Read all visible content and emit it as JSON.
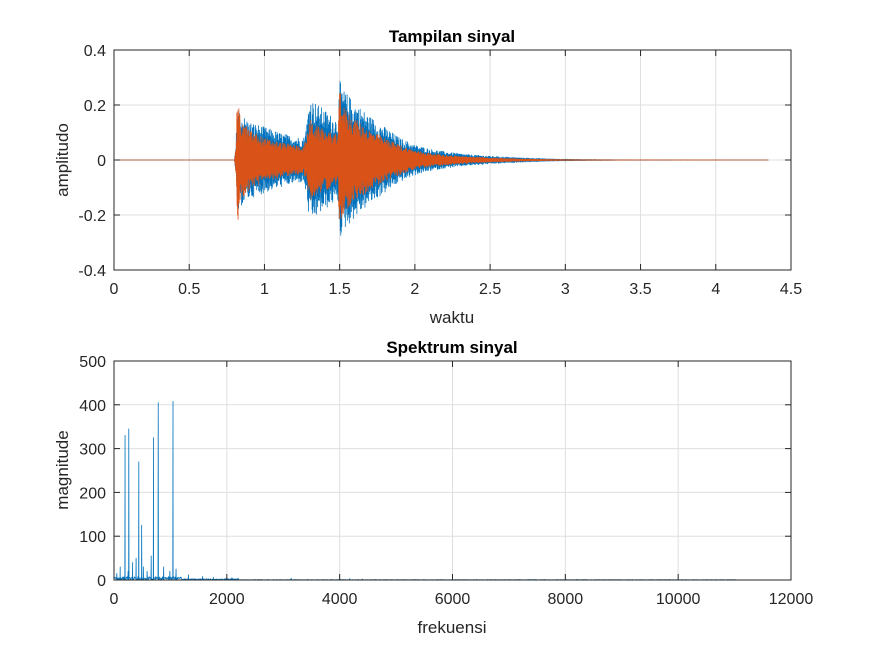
{
  "figure_background": "#ffffff",
  "chart_data": [
    {
      "type": "line",
      "title": "Tampilan sinyal",
      "xlabel": "waktu",
      "ylabel": "amplitudo",
      "xlim": [
        0,
        4.5
      ],
      "ylim": [
        -0.4,
        0.4
      ],
      "xticks": [
        "0",
        "0.5",
        "1",
        "1.5",
        "2",
        "2.5",
        "3",
        "3.5",
        "4",
        "4.5"
      ],
      "yticks": [
        "-0.4",
        "-0.2",
        "0",
        "0.2",
        "0.4"
      ],
      "grid": true,
      "x_end": 4.35,
      "series": [
        {
          "color": "#0072BD",
          "envelope": [
            [
              0,
              0
            ],
            [
              0.8,
              0
            ],
            [
              0.81,
              0.05
            ],
            [
              0.82,
              0.21
            ],
            [
              0.84,
              0.17
            ],
            [
              0.9,
              0.14
            ],
            [
              1.0,
              0.12
            ],
            [
              1.1,
              0.1
            ],
            [
              1.2,
              0.085
            ],
            [
              1.26,
              0.08
            ],
            [
              1.28,
              0.13
            ],
            [
              1.3,
              0.23
            ],
            [
              1.36,
              0.2
            ],
            [
              1.45,
              0.16
            ],
            [
              1.49,
              0.15
            ],
            [
              1.5,
              0.29
            ],
            [
              1.52,
              0.26
            ],
            [
              1.6,
              0.21
            ],
            [
              1.7,
              0.16
            ],
            [
              1.8,
              0.12
            ],
            [
              1.9,
              0.08
            ],
            [
              2.0,
              0.055
            ],
            [
              2.1,
              0.04
            ],
            [
              2.2,
              0.03
            ],
            [
              2.35,
              0.02
            ],
            [
              2.5,
              0.014
            ],
            [
              2.7,
              0.008
            ],
            [
              2.9,
              0.004
            ],
            [
              3.1,
              0.002
            ],
            [
              3.4,
              0.0008
            ],
            [
              4.35,
              0.0002
            ]
          ]
        },
        {
          "color": "#D95319",
          "envelope": [
            [
              0,
              0
            ],
            [
              0.8,
              0
            ],
            [
              0.81,
              0.05
            ],
            [
              0.82,
              0.24
            ],
            [
              0.84,
              0.15
            ],
            [
              0.9,
              0.11
            ],
            [
              1.0,
              0.08
            ],
            [
              1.1,
              0.065
            ],
            [
              1.2,
              0.055
            ],
            [
              1.26,
              0.05
            ],
            [
              1.28,
              0.08
            ],
            [
              1.3,
              0.15
            ],
            [
              1.36,
              0.12
            ],
            [
              1.45,
              0.1
            ],
            [
              1.49,
              0.09
            ],
            [
              1.5,
              0.31
            ],
            [
              1.52,
              0.2
            ],
            [
              1.6,
              0.15
            ],
            [
              1.7,
              0.11
            ],
            [
              1.8,
              0.08
            ],
            [
              1.9,
              0.055
            ],
            [
              2.0,
              0.035
            ],
            [
              2.1,
              0.025
            ],
            [
              2.2,
              0.018
            ],
            [
              2.35,
              0.012
            ],
            [
              2.5,
              0.008
            ],
            [
              2.7,
              0.004
            ],
            [
              2.9,
              0.002
            ],
            [
              3.1,
              0.001
            ],
            [
              3.4,
              0.0004
            ],
            [
              4.35,
              0.0001
            ]
          ]
        }
      ]
    },
    {
      "type": "line",
      "title": "Spektrum sinyal",
      "xlabel": "frekuensi",
      "ylabel": "magnitude",
      "xlim": [
        0,
        12000
      ],
      "ylim": [
        0,
        500
      ],
      "xticks": [
        "0",
        "2000",
        "4000",
        "6000",
        "8000",
        "10000",
        "12000"
      ],
      "yticks": [
        "0",
        "100",
        "200",
        "300",
        "400",
        "500"
      ],
      "grid": true,
      "x_end": 11025,
      "series": [
        {
          "color": "#0072BD",
          "peaks": [
            [
              50,
              15
            ],
            [
              110,
              30
            ],
            [
              196,
              330
            ],
            [
              250,
              20
            ],
            [
              262,
              345
            ],
            [
              330,
              40
            ],
            [
              392,
              50
            ],
            [
              440,
              270
            ],
            [
              490,
              125
            ],
            [
              520,
              30
            ],
            [
              587,
              20
            ],
            [
              659,
              55
            ],
            [
              700,
              325
            ],
            [
              784,
              405
            ],
            [
              880,
              30
            ],
            [
              990,
              20
            ],
            [
              1046,
              408
            ],
            [
              1100,
              25
            ],
            [
              1320,
              12
            ],
            [
              1570,
              8
            ],
            [
              1760,
              6
            ],
            [
              2090,
              5
            ],
            [
              2200,
              4
            ],
            [
              3140,
              4
            ],
            [
              4180,
              3
            ],
            [
              4400,
              2
            ]
          ]
        }
      ]
    }
  ]
}
